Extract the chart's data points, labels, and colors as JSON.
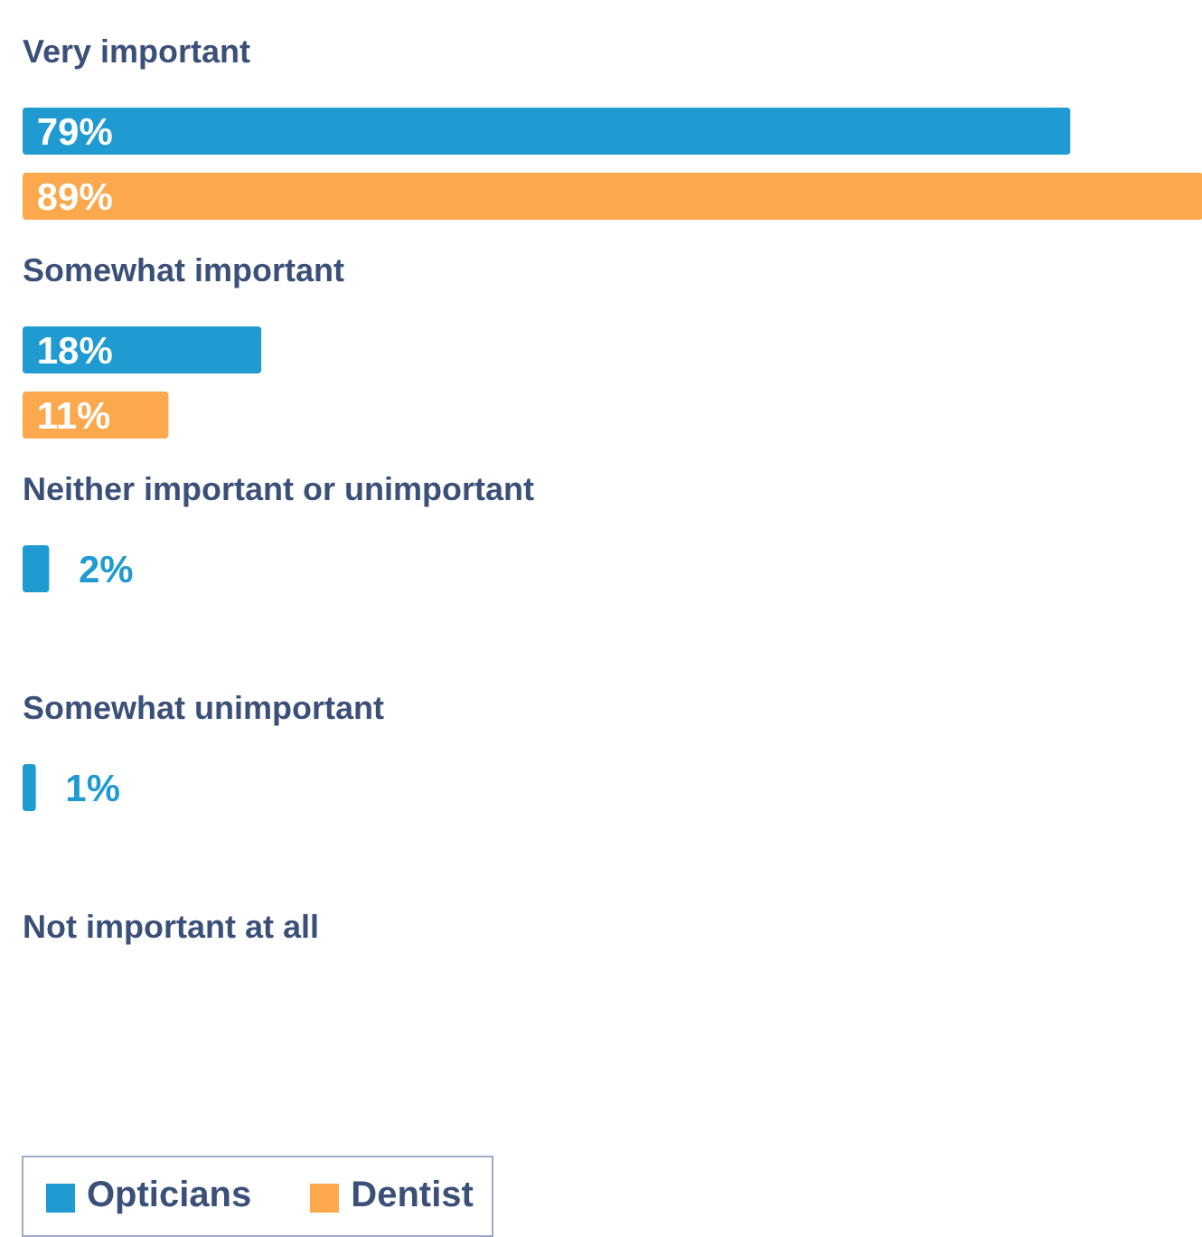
{
  "chart_data": {
    "type": "bar",
    "orientation": "horizontal",
    "categories": [
      "Very important",
      "Somewhat important",
      "Neither important or unimportant",
      "Somewhat unimportant",
      "Not important at all"
    ],
    "series": [
      {
        "name": "Opticians",
        "color": "#1f9bd1",
        "values": [
          79,
          18,
          2,
          1,
          0
        ],
        "value_labels": [
          "79%",
          "18%",
          "2%",
          "1%",
          null
        ]
      },
      {
        "name": "Dentist",
        "color": "#fba94c",
        "values": [
          89,
          11,
          0,
          0,
          0
        ],
        "value_labels": [
          "89%",
          "11%",
          null,
          null,
          null
        ]
      }
    ],
    "xlim": [
      0,
      89
    ],
    "legend": "bottom left",
    "grid": false,
    "tick_labels": false
  }
}
